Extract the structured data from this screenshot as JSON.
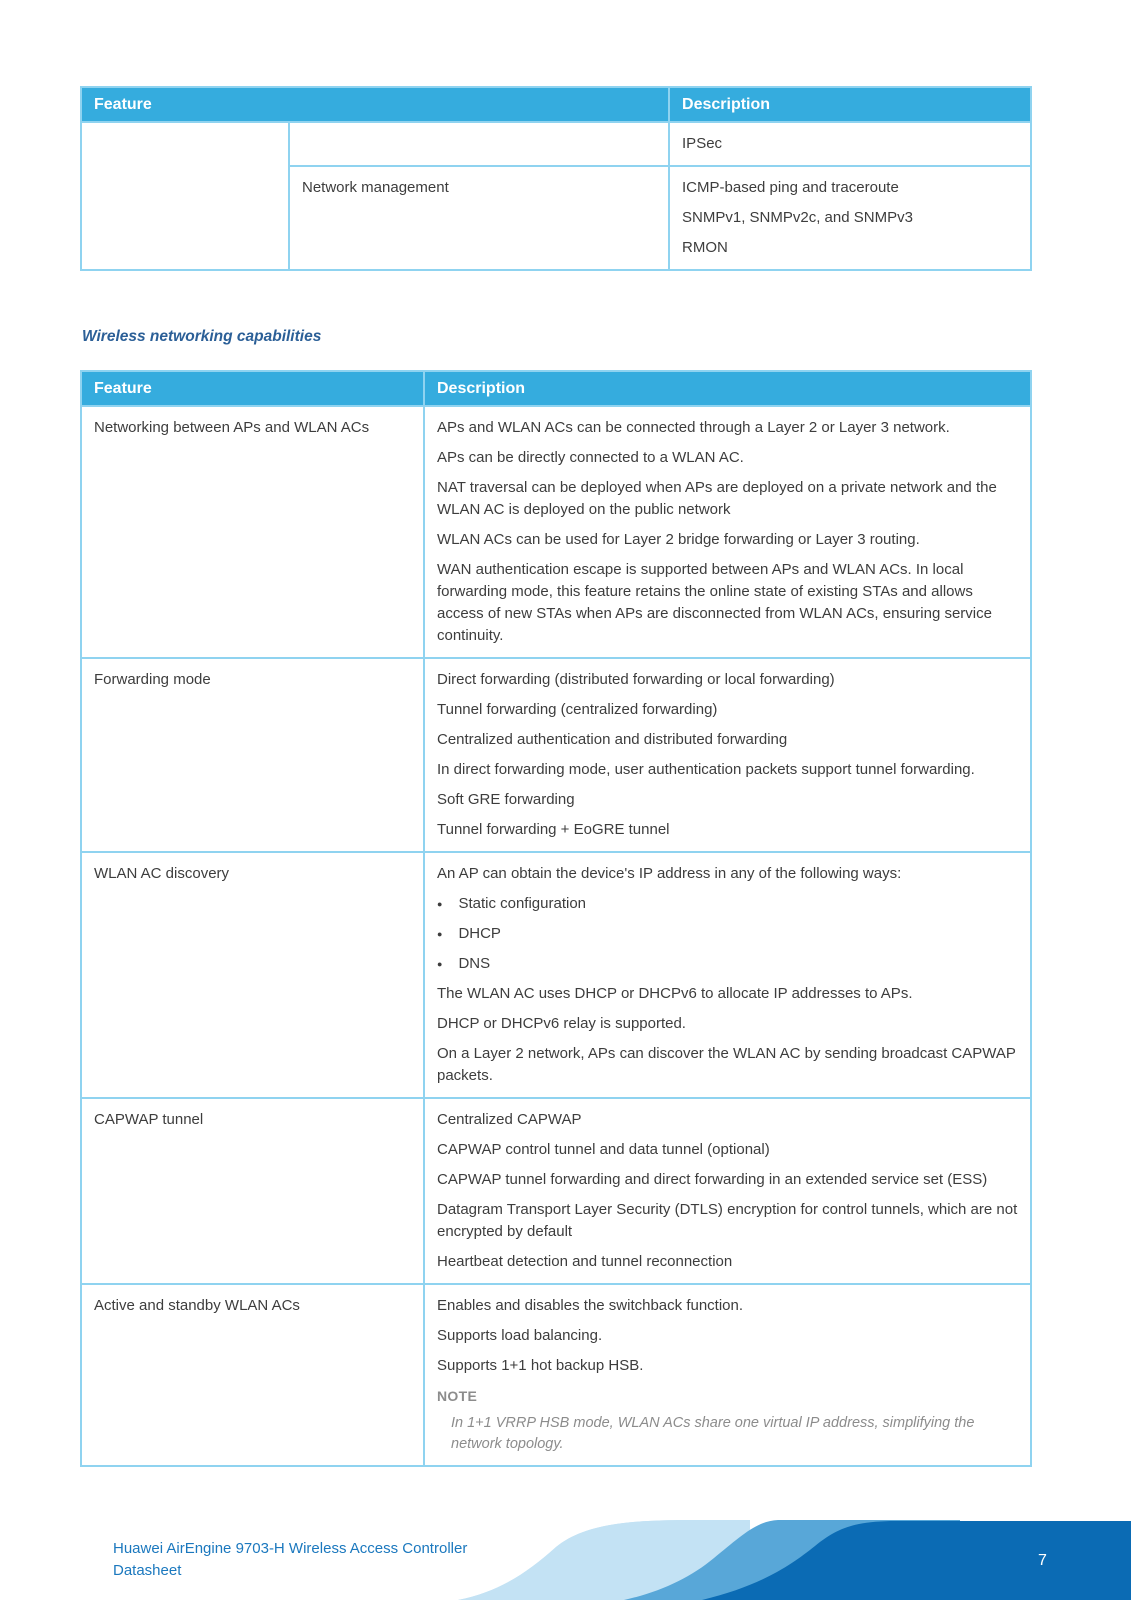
{
  "colors": {
    "header_blue": "#35ACDE",
    "table_border": "#8FD3F0",
    "title_blue": "#2B5F97",
    "body_text": "#3D3D3D",
    "note_gray": "#8C8C8C",
    "footer_text_blue": "#1B78BE",
    "wave_light": "#C3E2F4",
    "wave_medium": "#58A7D8",
    "wave_dark": "#0B6BB4",
    "page_number_white": "#FFFFFF"
  },
  "top_table": {
    "header": {
      "feature": "Feature",
      "description": "Description"
    },
    "rows": [
      {
        "feature": "",
        "subfeature": "",
        "description": [
          "IPSec"
        ]
      },
      {
        "feature": "",
        "subfeature": "Network management",
        "description": [
          "ICMP-based ping and traceroute",
          "SNMPv1, SNMPv2c, and SNMPv3",
          "RMON"
        ]
      }
    ]
  },
  "section_title": "Wireless networking capabilities",
  "main_table": {
    "header": {
      "feature": "Feature",
      "description": "Description"
    },
    "rows": [
      {
        "feature": "Networking between APs and WLAN ACs",
        "description": [
          {
            "type": "p",
            "text": "APs and WLAN ACs can be connected through a Layer 2 or Layer 3 network."
          },
          {
            "type": "p",
            "text": "APs can be directly connected to a WLAN AC."
          },
          {
            "type": "p",
            "text": "NAT traversal can be deployed when APs are deployed on a private network and the WLAN AC is deployed on the public network"
          },
          {
            "type": "p",
            "text": "WLAN ACs can be used for Layer 2 bridge forwarding or Layer 3 routing."
          },
          {
            "type": "p",
            "text": "WAN authentication escape is supported between APs and WLAN ACs. In local forwarding mode, this feature retains the online state of existing STAs and allows access of new STAs when APs are disconnected from WLAN ACs, ensuring service continuity."
          }
        ]
      },
      {
        "feature": "Forwarding mode",
        "description": [
          {
            "type": "p",
            "text": "Direct forwarding (distributed forwarding or local forwarding)"
          },
          {
            "type": "p",
            "text": "Tunnel forwarding (centralized forwarding)"
          },
          {
            "type": "p",
            "text": "Centralized authentication and distributed forwarding"
          },
          {
            "type": "p",
            "text": "In direct forwarding mode, user authentication packets support tunnel forwarding."
          },
          {
            "type": "p",
            "text": "Soft GRE forwarding"
          },
          {
            "type": "p",
            "text": "Tunnel forwarding + EoGRE tunnel"
          }
        ]
      },
      {
        "feature": "WLAN AC discovery",
        "description": [
          {
            "type": "p",
            "text": "An AP can obtain the device's IP address in any of the following ways:"
          },
          {
            "type": "bullet",
            "text": "Static configuration"
          },
          {
            "type": "bullet",
            "text": "DHCP"
          },
          {
            "type": "bullet",
            "text": "DNS"
          },
          {
            "type": "p",
            "text": "The WLAN AC uses DHCP or DHCPv6 to allocate IP addresses to APs."
          },
          {
            "type": "p",
            "text": "DHCP or DHCPv6 relay is supported."
          },
          {
            "type": "p",
            "text": "On a Layer 2 network, APs can discover the WLAN AC by sending broadcast CAPWAP packets."
          }
        ]
      },
      {
        "feature": "CAPWAP tunnel",
        "description": [
          {
            "type": "p",
            "text": "Centralized CAPWAP"
          },
          {
            "type": "p",
            "text": "CAPWAP control tunnel and data tunnel (optional)"
          },
          {
            "type": "p",
            "text": "CAPWAP tunnel forwarding and direct forwarding in an extended service set (ESS)"
          },
          {
            "type": "p",
            "text": "Datagram Transport Layer Security (DTLS) encryption for control tunnels, which are not encrypted by default"
          },
          {
            "type": "p",
            "text": "Heartbeat detection and tunnel reconnection"
          }
        ]
      },
      {
        "feature": "Active and standby WLAN ACs",
        "description": [
          {
            "type": "p",
            "text": "Enables and disables the switchback function."
          },
          {
            "type": "p",
            "text": "Supports load balancing."
          },
          {
            "type": "p",
            "text": "Supports 1+1 hot backup HSB."
          },
          {
            "type": "note-label",
            "text": "NOTE"
          },
          {
            "type": "note",
            "text": "In 1+1 VRRP HSB mode, WLAN ACs share one virtual IP address, simplifying the network topology."
          }
        ]
      }
    ]
  },
  "footer": {
    "line1": "Huawei AirEngine 9703-H Wireless Access Controller",
    "line2": "Datasheet",
    "page_number": "7"
  }
}
